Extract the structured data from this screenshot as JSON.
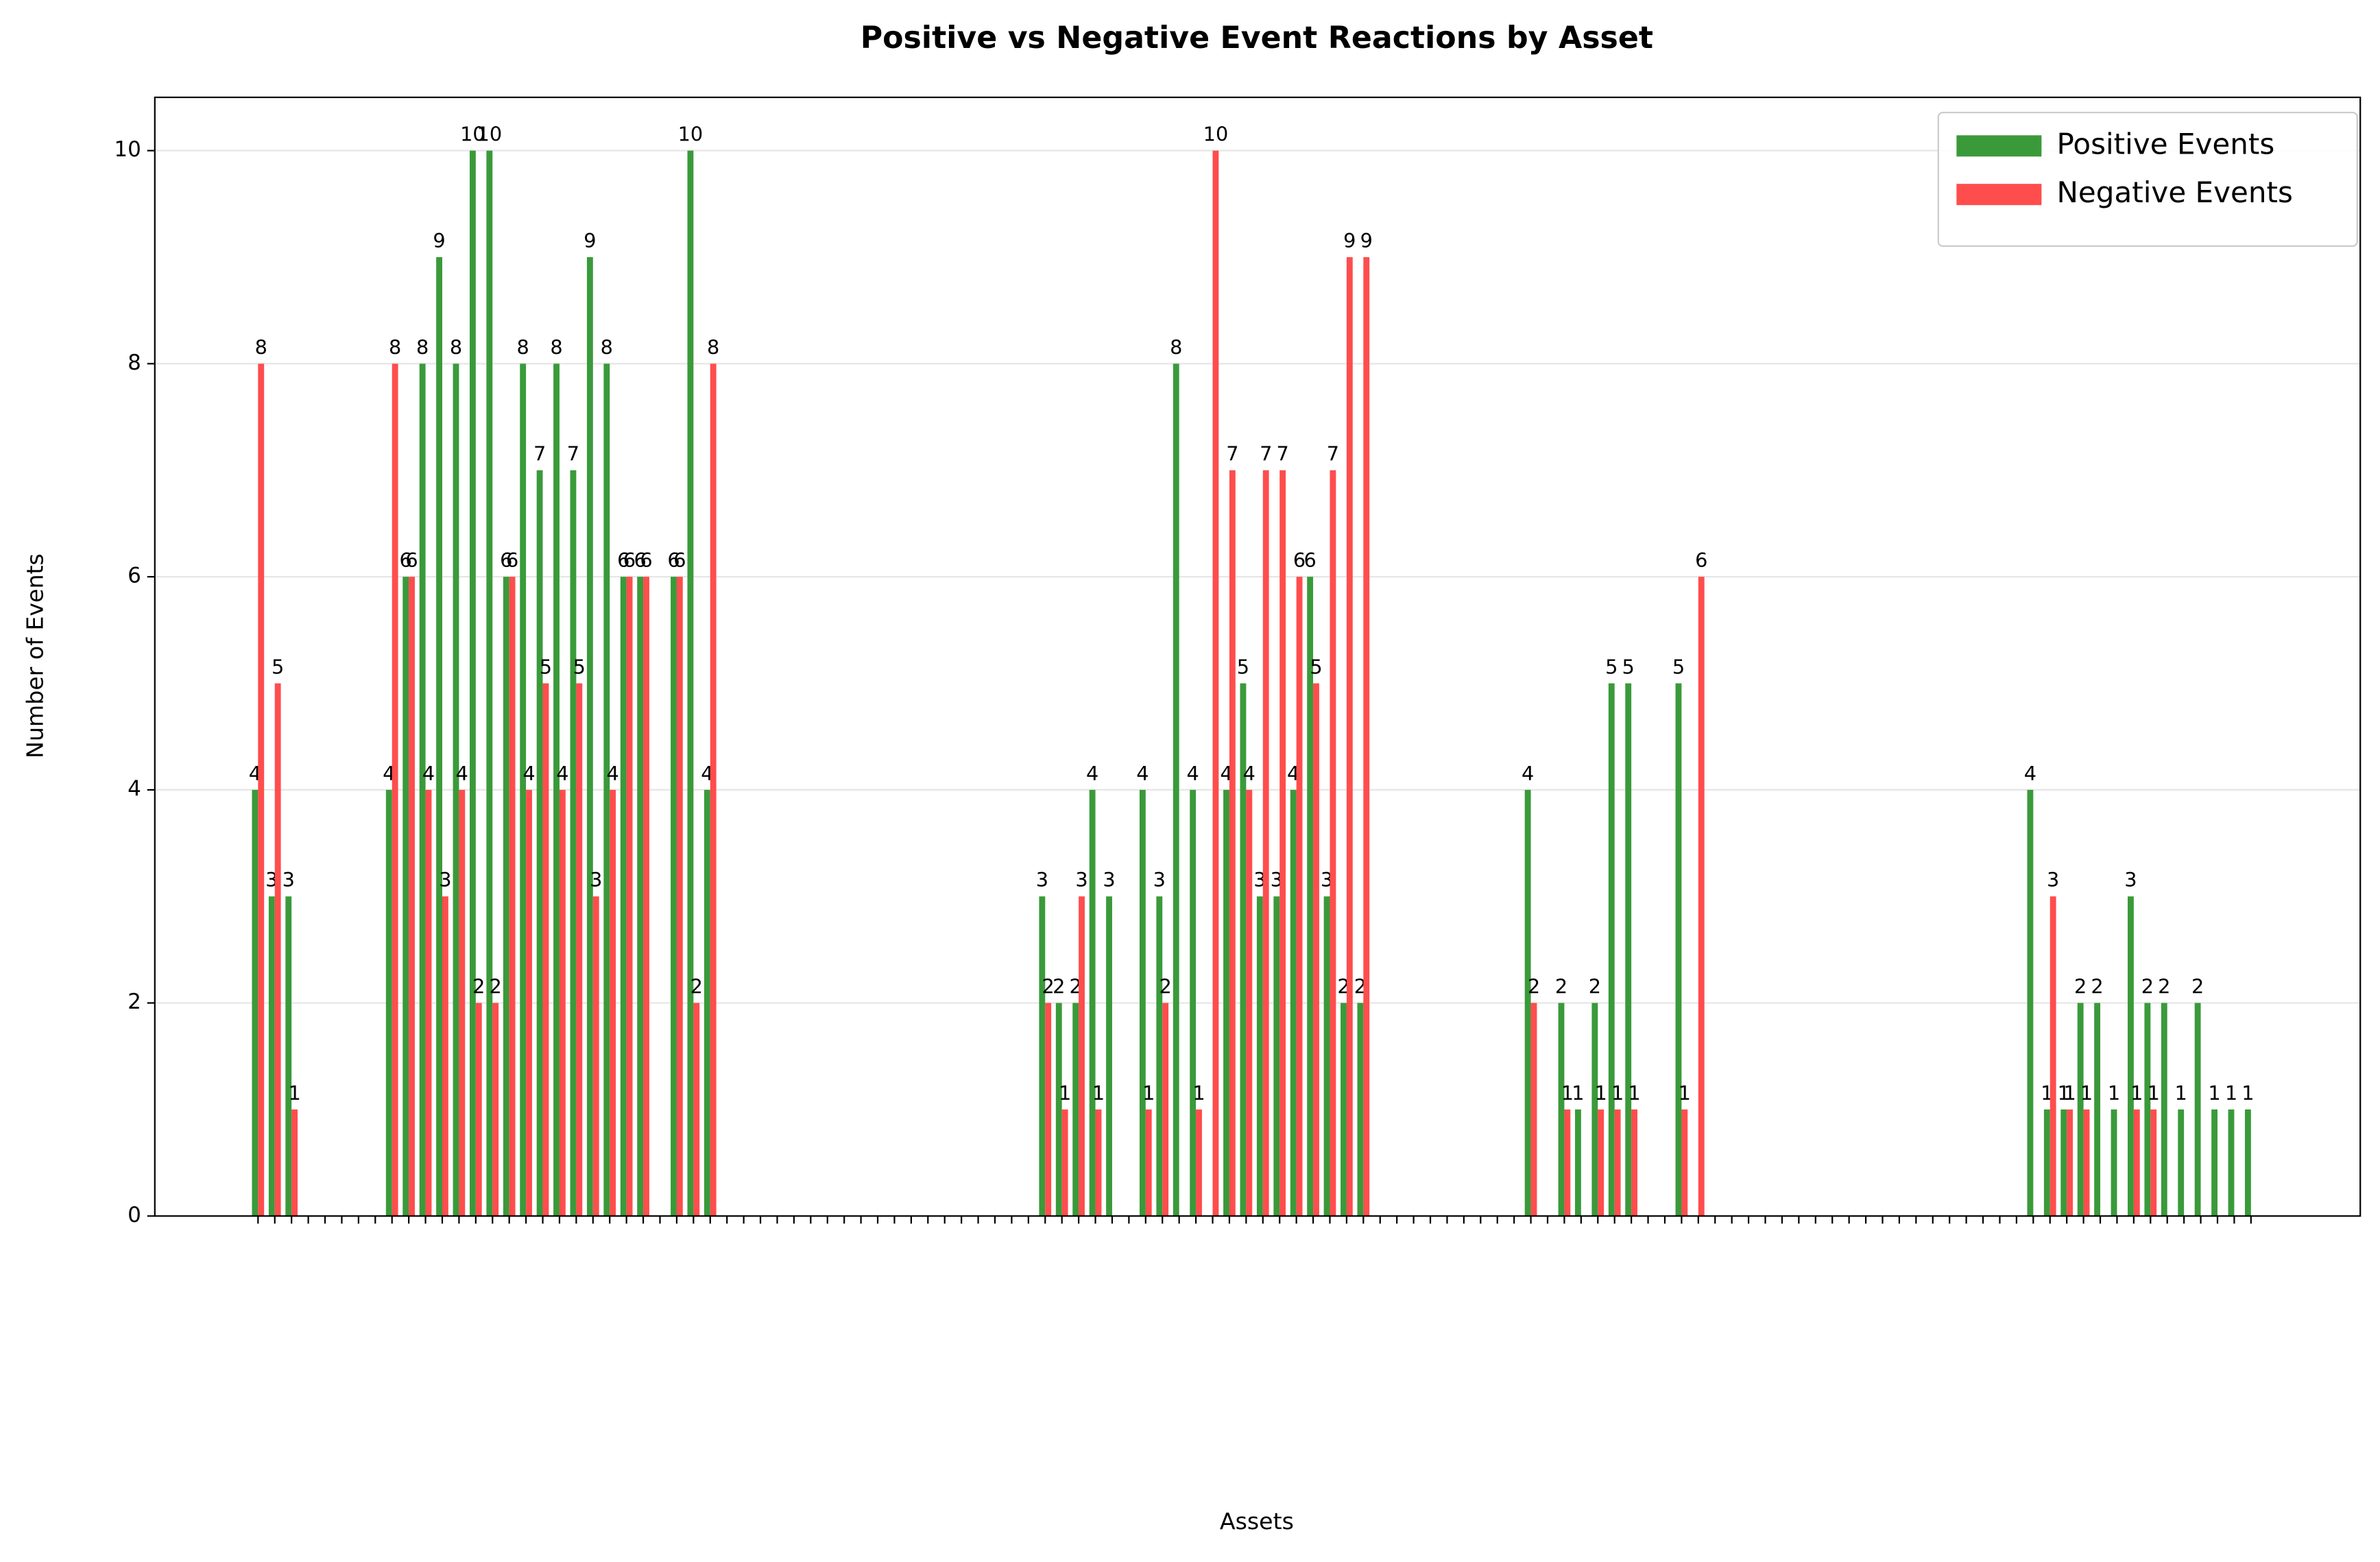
{
  "chart_data": {
    "type": "bar",
    "title": "Positive vs Negative Event Reactions by Asset",
    "xlabel": "Assets",
    "ylabel": "Number of Events",
    "categories": [
      null,
      null,
      null,
      null,
      null,
      null,
      null,
      null,
      null,
      null,
      null,
      null,
      null,
      null,
      null,
      null,
      null,
      null,
      null,
      null,
      null,
      null,
      null,
      null,
      null,
      null,
      null,
      null,
      null,
      null,
      null,
      null,
      null,
      null,
      null,
      null,
      null,
      null,
      null,
      null,
      null,
      null,
      null,
      null,
      null,
      null,
      null,
      null,
      null,
      null,
      null,
      null,
      null,
      null,
      null,
      null,
      null,
      null,
      null,
      null,
      null,
      null,
      null,
      null,
      null,
      null,
      null,
      null,
      null,
      null,
      null,
      null,
      null,
      null,
      null,
      null,
      null,
      null,
      null,
      null,
      null,
      null,
      null,
      null,
      null,
      null,
      null,
      null,
      null,
      null,
      null,
      null,
      null,
      null,
      null,
      null,
      null,
      null,
      null,
      null,
      null,
      null,
      null,
      null,
      null,
      null,
      null,
      null,
      null,
      null,
      null,
      null,
      null,
      null,
      null,
      null,
      null,
      null,
      null,
      null
    ],
    "series": [
      {
        "name": "Positive Events",
        "color": "#3a9a3a",
        "values": [
          4,
          3,
          3,
          0,
          0,
          0,
          0,
          0,
          4,
          6,
          8,
          9,
          8,
          10,
          10,
          6,
          8,
          7,
          8,
          7,
          9,
          8,
          6,
          6,
          0,
          6,
          10,
          4,
          0,
          0,
          0,
          0,
          0,
          0,
          0,
          0,
          0,
          0,
          0,
          0,
          0,
          0,
          0,
          0,
          0,
          0,
          0,
          3,
          2,
          2,
          4,
          3,
          0,
          4,
          3,
          8,
          4,
          0,
          4,
          5,
          3,
          3,
          4,
          6,
          3,
          2,
          2,
          0,
          0,
          0,
          0,
          0,
          0,
          0,
          0,
          0,
          4,
          0,
          2,
          1,
          2,
          5,
          5,
          0,
          0,
          5,
          0,
          0,
          0,
          0,
          0,
          0,
          0,
          0,
          0,
          0,
          0,
          0,
          0,
          0,
          0,
          0,
          0,
          0,
          0,
          0,
          4,
          1,
          1,
          2,
          2,
          1,
          3,
          2,
          2,
          1,
          2,
          1,
          1,
          1
        ]
      },
      {
        "name": "Negative Events",
        "color": "#ff4d4d",
        "values": [
          8,
          5,
          1,
          0,
          0,
          0,
          0,
          0,
          8,
          6,
          4,
          3,
          4,
          2,
          2,
          6,
          4,
          5,
          4,
          5,
          3,
          4,
          6,
          6,
          0,
          6,
          2,
          8,
          0,
          0,
          0,
          0,
          0,
          0,
          0,
          0,
          0,
          0,
          0,
          0,
          0,
          0,
          0,
          0,
          0,
          0,
          0,
          2,
          1,
          3,
          1,
          0,
          0,
          1,
          2,
          0,
          1,
          10,
          7,
          4,
          7,
          7,
          6,
          5,
          7,
          9,
          9,
          0,
          0,
          0,
          0,
          0,
          0,
          0,
          0,
          0,
          2,
          0,
          1,
          0,
          1,
          1,
          1,
          0,
          0,
          1,
          6,
          0,
          0,
          0,
          0,
          0,
          0,
          0,
          0,
          0,
          0,
          0,
          0,
          0,
          0,
          0,
          0,
          0,
          0,
          0,
          0,
          3,
          1,
          1,
          0,
          0,
          1,
          1,
          0,
          0,
          0,
          0,
          0,
          0
        ]
      }
    ],
    "ylim": [
      0,
      10.5
    ],
    "yticks": [
      0,
      2,
      4,
      6,
      8,
      10
    ],
    "grid": true,
    "legend": "upper right"
  }
}
